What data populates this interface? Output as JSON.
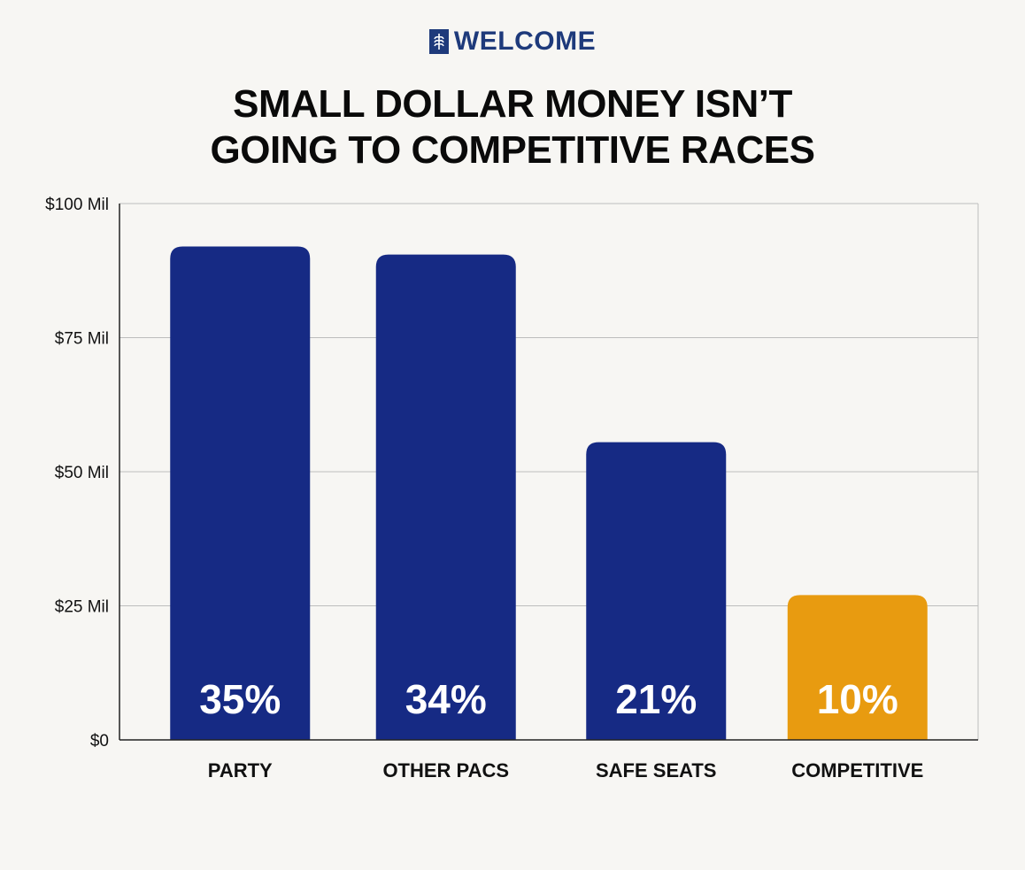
{
  "brand": {
    "name": "WELCOME",
    "logo_icon": "wheat-shield-icon",
    "color": "#1e3a7b"
  },
  "title_lines": [
    "SMALL DOLLAR MONEY ISN’T",
    "GOING TO COMPETITIVE RACES"
  ],
  "colors": {
    "bar": "#162a84",
    "highlight": "#e89b10",
    "grid": "#bdbdbd",
    "axis": "#222222"
  },
  "chart_data": {
    "type": "bar",
    "categories": [
      "PARTY",
      "OTHER PACS",
      "SAFE SEATS",
      "COMPETITIVE"
    ],
    "values": [
      92,
      90.5,
      55.5,
      27
    ],
    "data_labels": [
      "35%",
      "34%",
      "21%",
      "10%"
    ],
    "highlight_category": "COMPETITIVE",
    "ylim": [
      0,
      100
    ],
    "yticks": [
      {
        "value": 0,
        "label": "$0"
      },
      {
        "value": 25,
        "label": "$25 Mil"
      },
      {
        "value": 50,
        "label": "$50 Mil"
      },
      {
        "value": 75,
        "label": "$75 Mil"
      },
      {
        "value": 100,
        "label": "$100 Mil"
      }
    ],
    "grid": true,
    "legend": "none"
  }
}
